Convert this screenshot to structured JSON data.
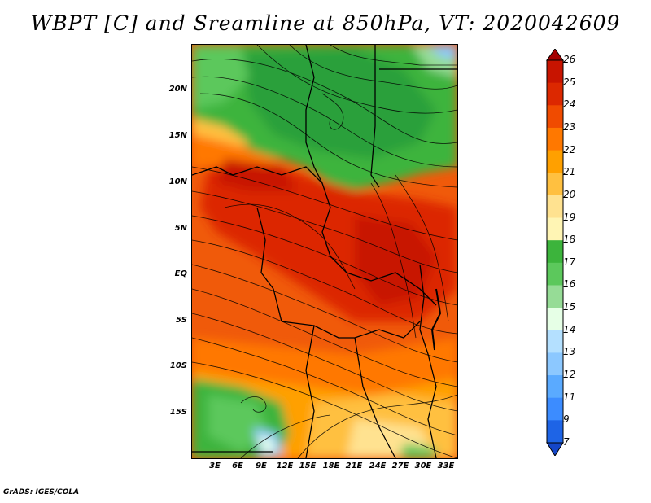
{
  "title": "WBPT [C] and Sreamline at 850hPa, VT: 2020042609",
  "footer": "GrADS: IGES/COLA",
  "map": {
    "variable": "Wet-bulb potential temperature",
    "units": "C",
    "level": "850hPa",
    "valid_time": "2020042609",
    "lat_labels": [
      "20N",
      "15N",
      "10N",
      "5N",
      "EQ",
      "5S",
      "10S",
      "15S"
    ],
    "lon_labels": [
      "3E",
      "6E",
      "9E",
      "12E",
      "15E",
      "18E",
      "21E",
      "24E",
      "27E",
      "30E",
      "33E"
    ]
  },
  "colorbar": {
    "labels": [
      "26",
      "25",
      "24",
      "23",
      "22",
      "21",
      "20",
      "19",
      "18",
      "17",
      "16",
      "15",
      "14",
      "13",
      "12",
      "11",
      "9",
      "7"
    ],
    "colors": [
      "#a50000",
      "#c81400",
      "#dc2800",
      "#f04b00",
      "#ff7800",
      "#ffa000",
      "#ffc040",
      "#ffe290",
      "#fff5b4",
      "#3cb43c",
      "#5cc85c",
      "#96dc96",
      "#e6ffe6",
      "#b4e0ff",
      "#8cc8ff",
      "#5aaaff",
      "#3c8cff",
      "#1e64e6",
      "#1446c8"
    ]
  }
}
